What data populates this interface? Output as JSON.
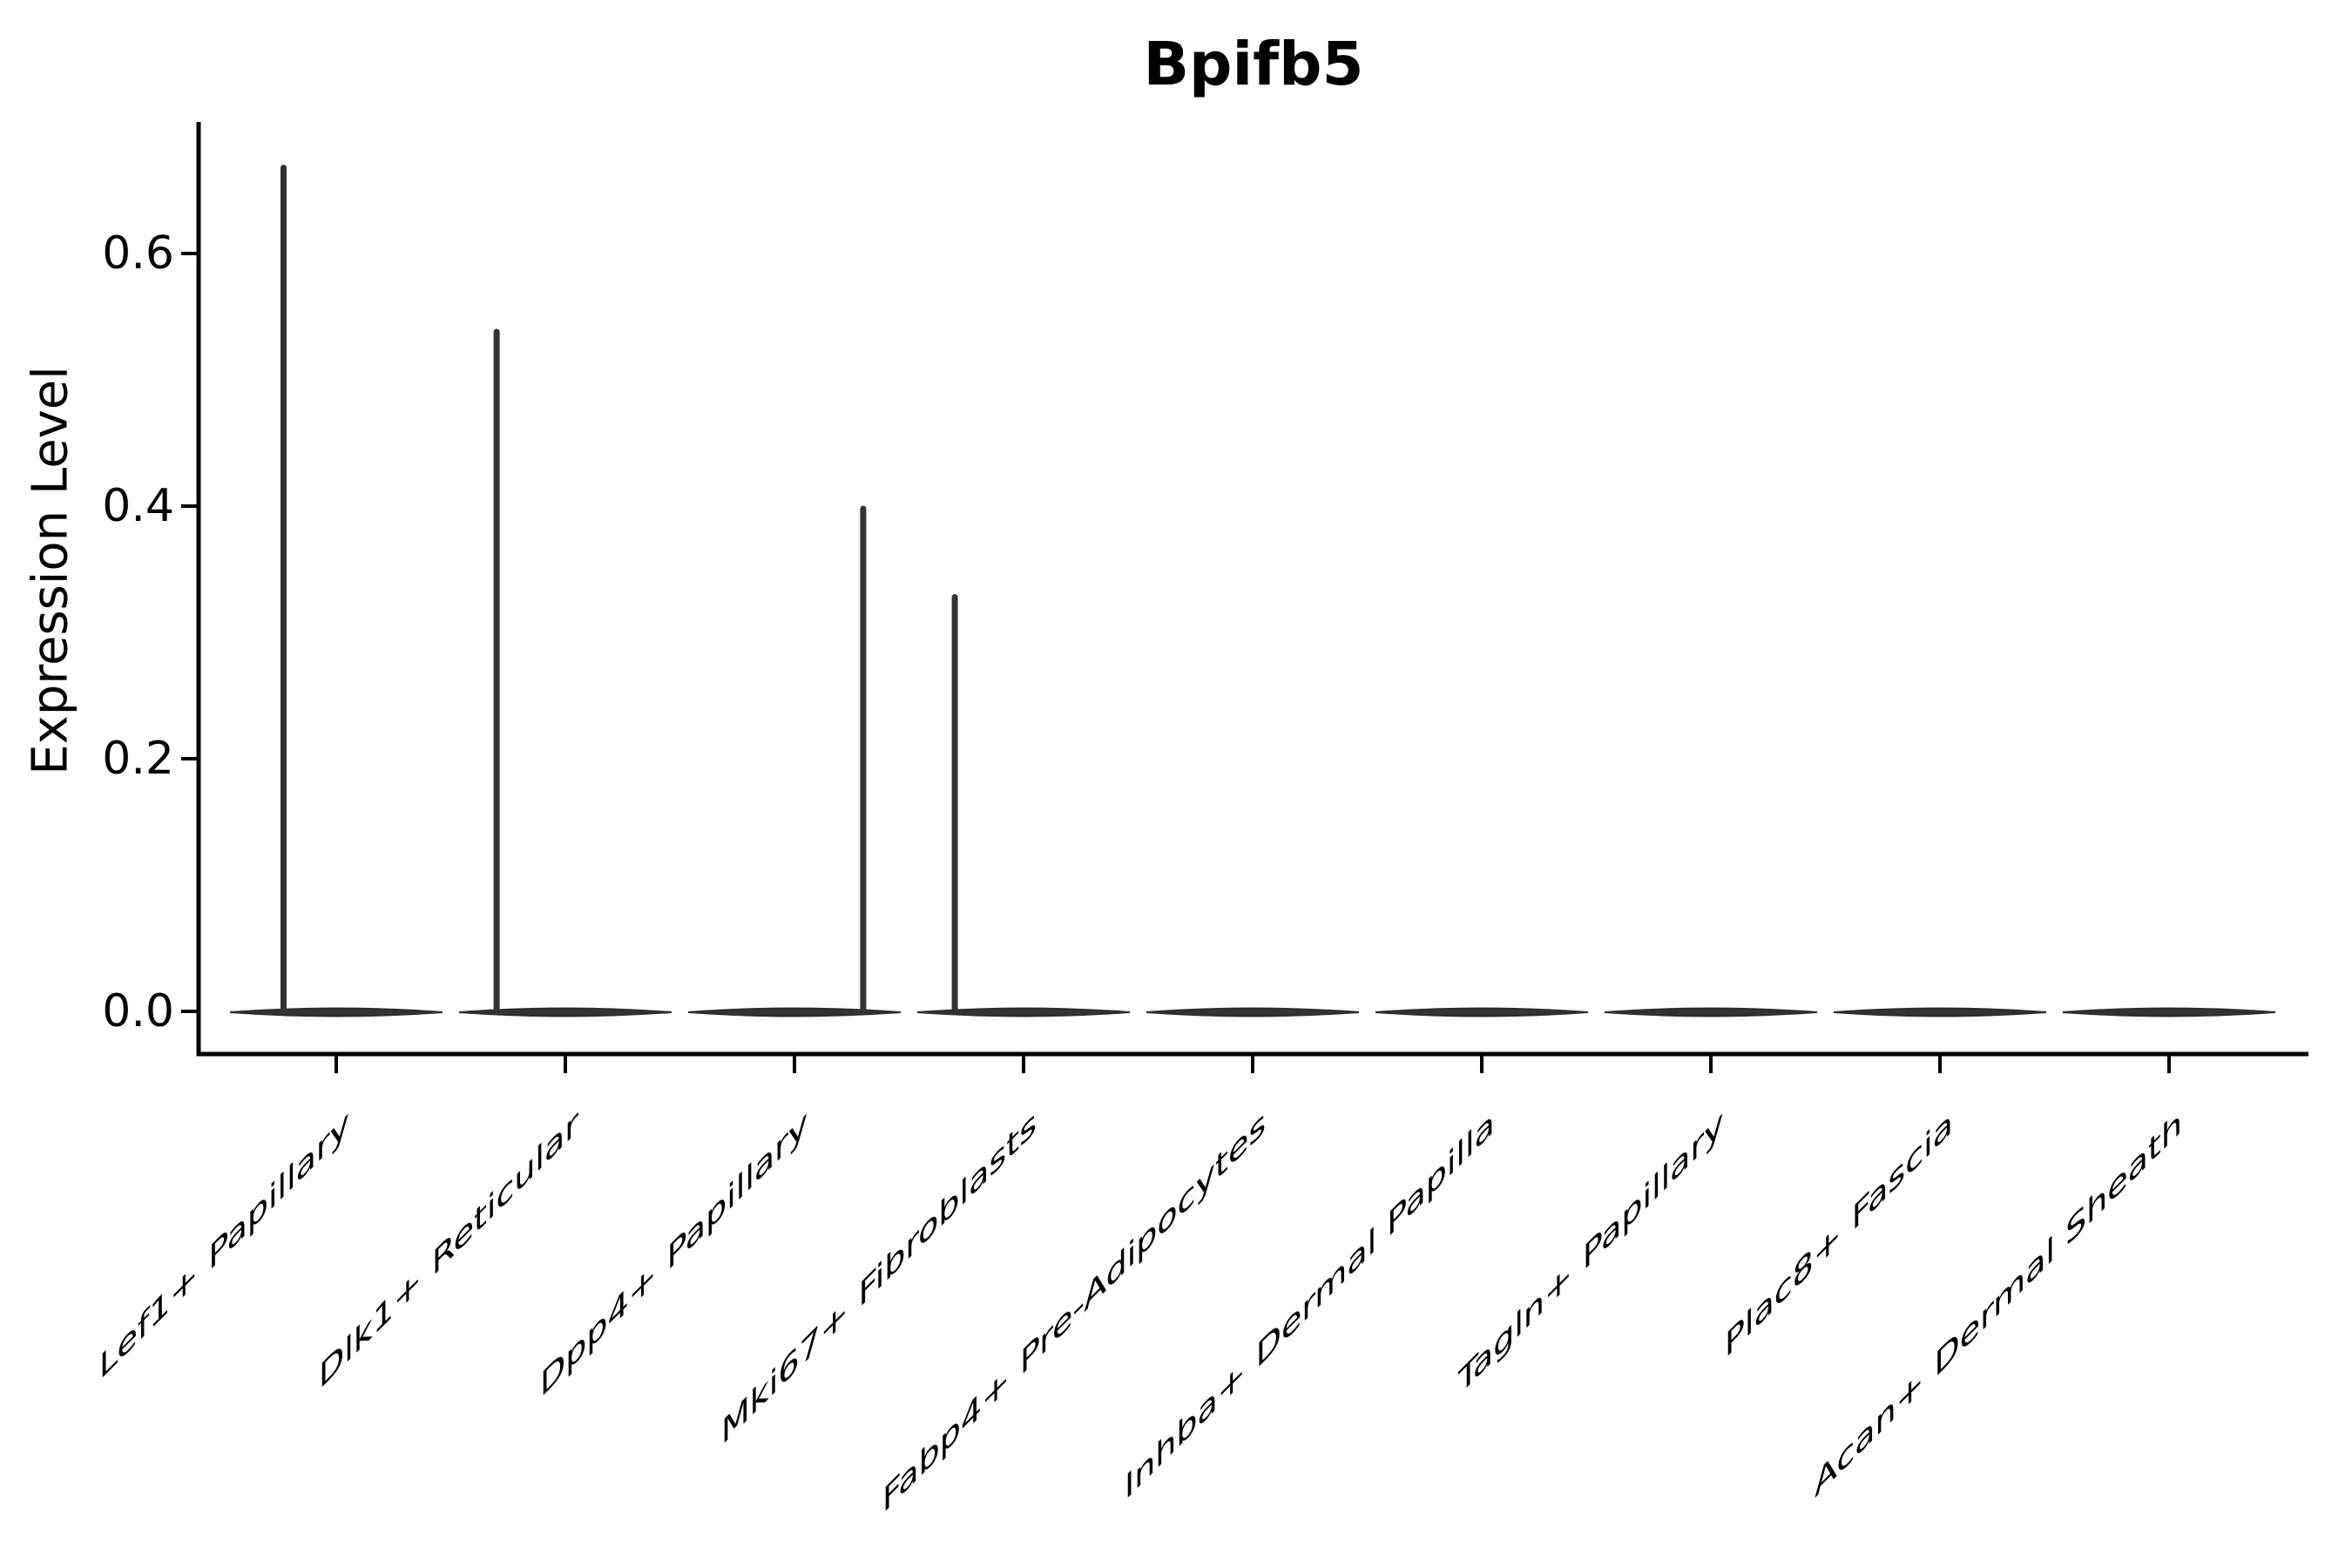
{
  "figure": {
    "title": "Bpifb5"
  },
  "y_axis": {
    "label": "Expression Level"
  },
  "colors": {
    "violin_fill": "#333333",
    "violin_stroke": "#2d2d2d",
    "axis": "#000000",
    "text": "#000000",
    "background": "#ffffff"
  },
  "chart_data": {
    "type": "violin",
    "title": "Bpifb5",
    "xlabel": "",
    "ylabel": "Expression Level",
    "ylim": [
      0,
      0.7
    ],
    "grid": false,
    "legend": false,
    "yticks": [
      0.0,
      0.2,
      0.4,
      0.6
    ],
    "ytick_labels": [
      "0.0",
      "0.2",
      "0.4",
      "0.6"
    ],
    "categories": [
      "Lef1+ Papillary",
      "Dlk1+ Reticular",
      "Dpp4+ Papillary",
      "Mki67+ Fibroblasts",
      "Fabp4+ Pre-Adipocytes",
      "Inhba+ Dermal Papilla",
      "Tagln+ Papillary",
      "Plac8+ Fascia",
      "Acan+ Dermal Sheath"
    ],
    "series": [
      {
        "name": "Lef1+ Papillary",
        "zero_density_bar": true,
        "max_expression": 0.67,
        "spike_offset": -0.23
      },
      {
        "name": "Dlk1+ Reticular",
        "zero_density_bar": true,
        "max_expression": 0.54,
        "spike_offset": -0.3
      },
      {
        "name": "Dpp4+ Papillary",
        "zero_density_bar": true,
        "max_expression": 0.4,
        "spike_offset": 0.3
      },
      {
        "name": "Mki67+ Fibroblasts",
        "zero_density_bar": true,
        "max_expression": 0.33,
        "spike_offset": -0.3
      },
      {
        "name": "Fabp4+ Pre-Adipocytes",
        "zero_density_bar": true,
        "max_expression": 0,
        "spike_offset": 0
      },
      {
        "name": "Inhba+ Dermal Papilla",
        "zero_density_bar": true,
        "max_expression": 0,
        "spike_offset": 0
      },
      {
        "name": "Tagln+ Papillary",
        "zero_density_bar": true,
        "max_expression": 0,
        "spike_offset": 0
      },
      {
        "name": "Plac8+ Fascia",
        "zero_density_bar": true,
        "max_expression": 0,
        "spike_offset": 0
      },
      {
        "name": "Acan+ Dermal Sheath",
        "zero_density_bar": true,
        "max_expression": 0,
        "spike_offset": 0
      }
    ]
  }
}
